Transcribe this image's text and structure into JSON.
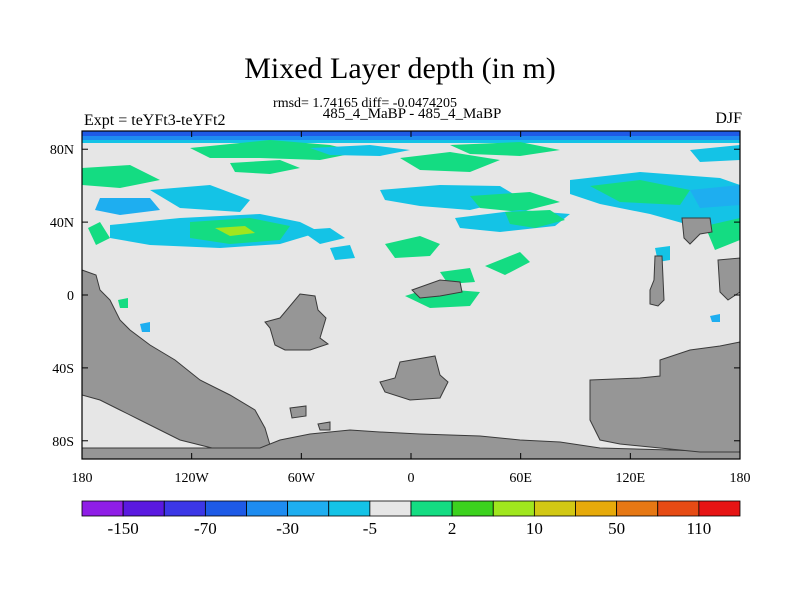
{
  "header": {
    "title": "Mixed Layer depth (in m)",
    "stats": "rmsd= 1.74165 diff= -0.0474205",
    "subtitle": "485_4_MaBP - 485_4_MaBP",
    "left_label": "Expt = teYFt3-teYFt2",
    "right_label": "DJF"
  },
  "map": {
    "projection": "cylindrical equidistant",
    "lon_range": [
      -180,
      180
    ],
    "lat_range": [
      -90,
      90
    ],
    "lon_ticks": [
      {
        "value": -180,
        "label": "180"
      },
      {
        "value": -120,
        "label": "120W"
      },
      {
        "value": -60,
        "label": "60W"
      },
      {
        "value": 0,
        "label": "0"
      },
      {
        "value": 60,
        "label": "60E"
      },
      {
        "value": 120,
        "label": "120E"
      },
      {
        "value": 180,
        "label": "180"
      }
    ],
    "lat_ticks": [
      {
        "value": 80,
        "label": "80N"
      },
      {
        "value": 40,
        "label": "40N"
      },
      {
        "value": 0,
        "label": "0"
      },
      {
        "value": -40,
        "label": "40S"
      },
      {
        "value": -80,
        "label": "80S"
      }
    ],
    "colors": {
      "ocean_background": "#e6e6e6",
      "land": "#969696",
      "frame": "#000000"
    }
  },
  "colorbar": {
    "colors": [
      "#8f1ee6",
      "#5a19e0",
      "#3c37e6",
      "#1e5ae6",
      "#1e8cf0",
      "#1eaef0",
      "#14c3e6",
      "#e6e6e6",
      "#14dc82",
      "#3cd21e",
      "#a0e61e",
      "#d2c814",
      "#e6aa0a",
      "#e67814",
      "#e64b14",
      "#e61414"
    ],
    "labels": [
      {
        "after_box": 1,
        "text": "-150"
      },
      {
        "after_box": 3,
        "text": "-70"
      },
      {
        "after_box": 5,
        "text": "-30"
      },
      {
        "after_box": 7,
        "text": "-5"
      },
      {
        "after_box": 9,
        "text": "2"
      },
      {
        "after_box": 11,
        "text": "10"
      },
      {
        "after_box": 13,
        "text": "50"
      },
      {
        "after_box": 15,
        "text": "110"
      }
    ]
  }
}
